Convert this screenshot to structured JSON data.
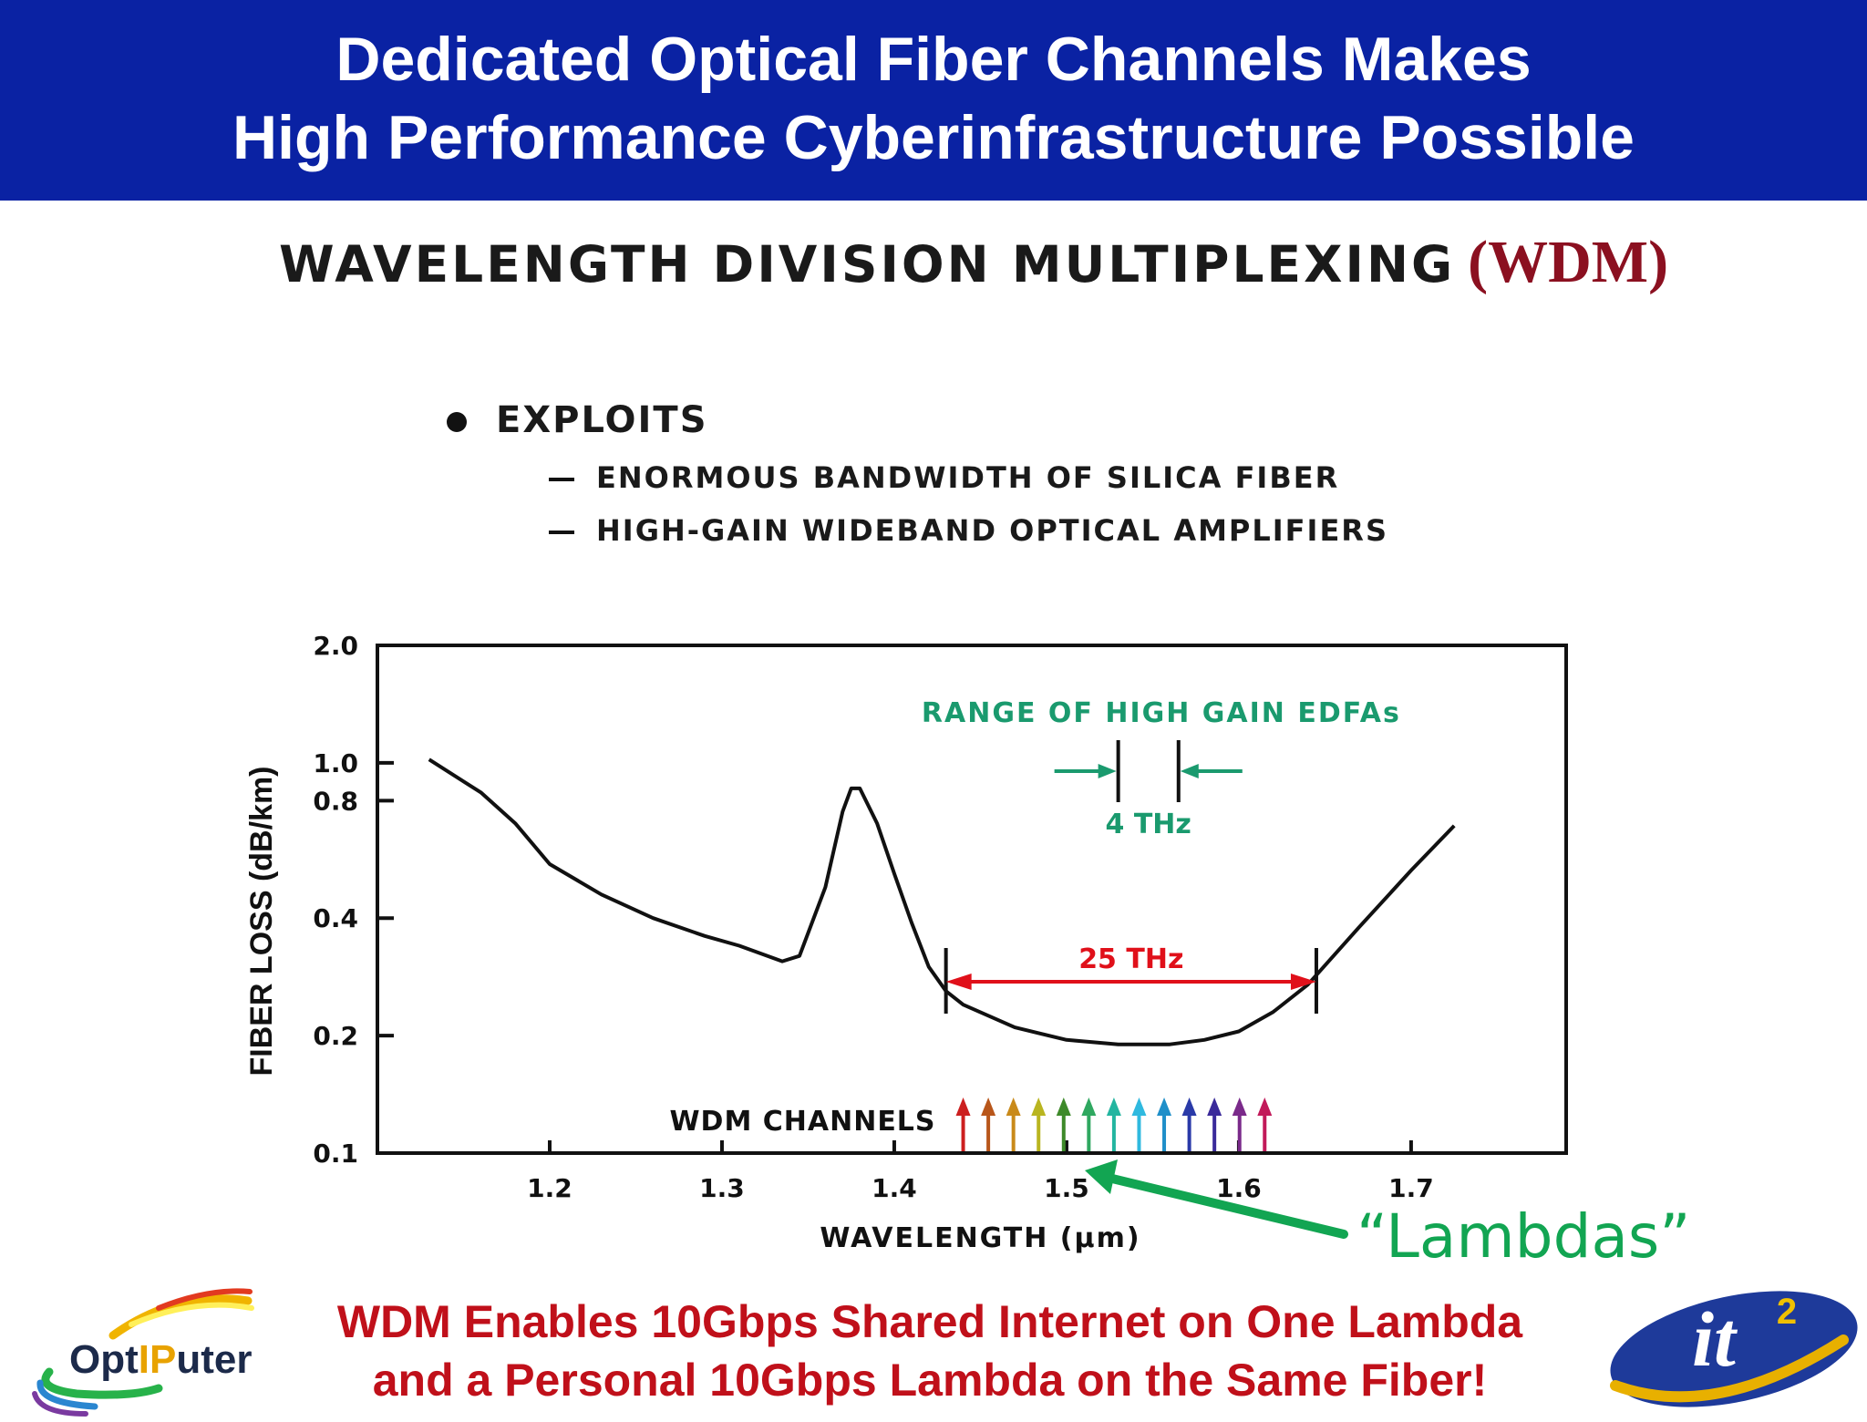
{
  "header": {
    "line1": "Dedicated Optical Fiber Channels Makes",
    "line2": "High Performance Cyberinfrastructure Possible"
  },
  "slide": {
    "title_main": "WAVELENGTH DIVISION MULTIPLEXING",
    "title_abbr": "(WDM)",
    "bullet": "EXPLOITS",
    "subitems": [
      "ENORMOUS BANDWIDTH OF SILICA FIBER",
      "HIGH-GAIN WIDEBAND OPTICAL AMPLIFIERS"
    ],
    "callout": "“Lambdas”",
    "bottom_line1": "WDM Enables 10Gbps Shared Internet on One Lambda",
    "bottom_line2": "and a Personal 10Gbps Lambda on the Same Fiber!"
  },
  "logos": {
    "left": {
      "prefix": "Opt",
      "highlight": "IP",
      "suffix": "uter"
    },
    "right": {
      "text": "it",
      "sup": "2"
    }
  },
  "colors": {
    "header_bg": "#0a22a3",
    "title_abbr": "#8b1020",
    "edfa_green": "#1a9a6e",
    "range_red": "#e0101a",
    "lambdas_green": "#12a552",
    "bottom_red": "#c0101a"
  },
  "chart_data": {
    "type": "line",
    "xlabel": "WAVELENGTH (μm)",
    "ylabel": "FIBER LOSS (dB/km)",
    "x_ticks": [
      1.2,
      1.3,
      1.4,
      1.5,
      1.6,
      1.7
    ],
    "x_tick_labels": [
      "1.2",
      "1.3",
      "1.4",
      "1.5",
      "1.6",
      "1.7"
    ],
    "y_ticks": [
      2.0,
      1.0,
      0.8,
      0.4,
      0.2,
      0.1
    ],
    "y_tick_labels": [
      "2.0",
      "1.0",
      "0.8",
      "0.4",
      "0.2",
      "0.1"
    ],
    "xlim": [
      1.1,
      1.79
    ],
    "ylim": [
      0.1,
      2.0
    ],
    "grid": false,
    "series": [
      {
        "x": [
          1.13,
          1.16,
          1.18,
          1.2,
          1.23,
          1.26,
          1.29,
          1.31,
          1.335,
          1.345,
          1.36,
          1.37,
          1.375,
          1.38,
          1.39,
          1.4,
          1.41,
          1.42,
          1.43,
          1.44,
          1.47,
          1.5,
          1.53,
          1.56,
          1.58,
          1.6,
          1.62,
          1.64,
          1.67,
          1.7,
          1.725
        ],
        "y": [
          1.02,
          0.84,
          0.7,
          0.55,
          0.46,
          0.4,
          0.36,
          0.34,
          0.31,
          0.32,
          0.48,
          0.75,
          0.86,
          0.86,
          0.7,
          0.52,
          0.39,
          0.3,
          0.26,
          0.24,
          0.21,
          0.195,
          0.19,
          0.19,
          0.195,
          0.205,
          0.23,
          0.27,
          0.38,
          0.53,
          0.69
        ]
      }
    ],
    "annotations": {
      "edfa_label": "RANGE OF HIGH GAIN EDFAs",
      "edfa_width": "4 THz",
      "edfa_range": [
        1.53,
        1.565
      ],
      "band_width": "25 THz",
      "band_range": [
        1.43,
        1.645
      ],
      "channels_label": "WDM CHANNELS",
      "channel_colors": [
        "#cc1f1f",
        "#b8561a",
        "#c98a1a",
        "#b9b520",
        "#3e8a2a",
        "#2fa860",
        "#23b5a0",
        "#2fb9df",
        "#1f8fc9",
        "#2a3aa8",
        "#3a2a9a",
        "#7a2a8a",
        "#c21a5a"
      ],
      "channels_range": [
        1.44,
        1.615
      ]
    }
  }
}
